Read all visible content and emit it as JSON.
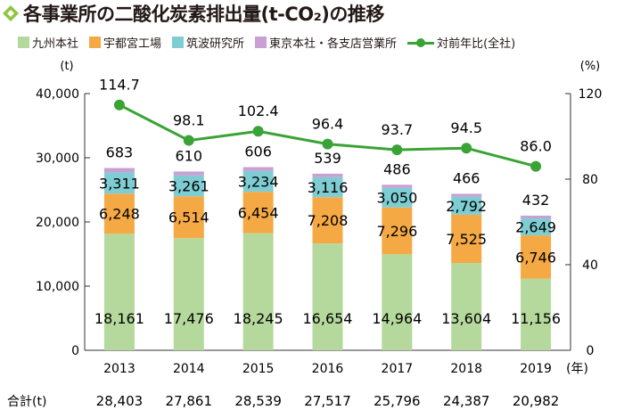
{
  "title": "各事業所の二酸化炭素排出量(t-CO₂)の推移",
  "colors": {
    "title_icon": "#8dc63f",
    "seg_kyushu": "#b5d99c",
    "seg_utsunomiya": "#f5a944",
    "seg_tsukuba": "#7ecdd3",
    "seg_tokyo": "#c9a0d3",
    "line": "#3aa335",
    "axis": "#333333"
  },
  "legend": [
    {
      "label": "九州本社",
      "color_key": "seg_kyushu",
      "kind": "box"
    },
    {
      "label": "宇都宮工場",
      "color_key": "seg_utsunomiya",
      "kind": "box"
    },
    {
      "label": "筑波研究所",
      "color_key": "seg_tsukuba",
      "kind": "box"
    },
    {
      "label": "東京本社・各支店営業所",
      "color_key": "seg_tokyo",
      "kind": "box"
    },
    {
      "label": "対前年比(全社)",
      "color_key": "line",
      "kind": "line"
    }
  ],
  "chart_data": {
    "type": "bar",
    "stacked": true,
    "categories": [
      "2013",
      "2014",
      "2015",
      "2016",
      "2017",
      "2018",
      "2019"
    ],
    "x_unit": "(年)",
    "series": [
      {
        "name": "九州本社",
        "color_key": "seg_kyushu",
        "values": [
          18161,
          17476,
          18245,
          16654,
          14964,
          13604,
          11156
        ],
        "labels": [
          "18,161",
          "17,476",
          "18,245",
          "16,654",
          "14,964",
          "13,604",
          "11,156"
        ]
      },
      {
        "name": "宇都宮工場",
        "color_key": "seg_utsunomiya",
        "values": [
          6248,
          6514,
          6454,
          7208,
          7296,
          7525,
          6746
        ],
        "labels": [
          "6,248",
          "6,514",
          "6,454",
          "7,208",
          "7,296",
          "7,525",
          "6,746"
        ]
      },
      {
        "name": "筑波研究所",
        "color_key": "seg_tsukuba",
        "values": [
          3311,
          3261,
          3234,
          3116,
          3050,
          2792,
          2649
        ],
        "labels": [
          "3,311",
          "3,261",
          "3,234",
          "3,116",
          "3,050",
          "2,792",
          "2,649"
        ]
      },
      {
        "name": "東京本社・各支店営業所",
        "color_key": "seg_tokyo",
        "values": [
          683,
          610,
          606,
          539,
          486,
          466,
          432
        ],
        "labels": [
          "683",
          "610",
          "606",
          "539",
          "486",
          "466",
          "432"
        ]
      }
    ],
    "line_series": {
      "name": "対前年比(全社)",
      "color_key": "line",
      "values": [
        114.7,
        98.1,
        102.4,
        96.4,
        93.7,
        94.5,
        86.0
      ],
      "labels": [
        "114.7",
        "98.1",
        "102.4",
        "96.4",
        "93.7",
        "94.5",
        "86.0"
      ]
    },
    "y_left": {
      "unit": "(t)",
      "range": [
        0,
        40000
      ],
      "ticks": [
        0,
        10000,
        20000,
        30000,
        40000
      ],
      "tick_labels": [
        "0",
        "10,000",
        "20,000",
        "30,000",
        "40,000"
      ]
    },
    "y_right": {
      "unit": "(%)",
      "range": [
        0,
        120
      ],
      "ticks": [
        0,
        40,
        80,
        120
      ],
      "tick_labels": [
        "0",
        "40",
        "80",
        "120"
      ]
    },
    "grid": false,
    "legend_position": "top",
    "totals": {
      "label": "合計(t)",
      "values": [
        28403,
        27861,
        28539,
        27517,
        25796,
        24387,
        20982
      ],
      "labels": [
        "28,403",
        "27,861",
        "28,539",
        "27,517",
        "25,796",
        "24,387",
        "20,982"
      ]
    }
  }
}
